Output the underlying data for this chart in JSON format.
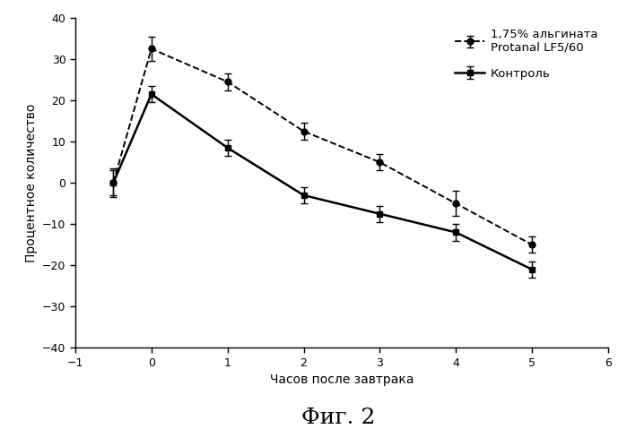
{
  "alginate_x": [
    -0.5,
    0,
    1,
    2,
    3,
    4,
    5
  ],
  "alginate_y": [
    0,
    32.5,
    24.5,
    12.5,
    5,
    -5,
    -15
  ],
  "alginate_yerr": [
    3.5,
    3,
    2,
    2,
    2,
    3,
    2
  ],
  "control_x": [
    -0.5,
    0,
    1,
    2,
    3,
    4,
    5
  ],
  "control_y": [
    0,
    21.5,
    8.5,
    -3,
    -7.5,
    -12,
    -21
  ],
  "control_yerr": [
    3,
    2,
    2,
    2,
    2,
    2,
    2
  ],
  "xlim": [
    -1,
    6
  ],
  "ylim": [
    -40,
    40
  ],
  "xticks": [
    -1,
    0,
    1,
    2,
    3,
    4,
    5,
    6
  ],
  "yticks": [
    -40,
    -30,
    -20,
    -10,
    0,
    10,
    20,
    30,
    40
  ],
  "xlabel": "Часов после завтрака",
  "ylabel": "Процентное количество",
  "legend1": "1,75% альгината\nProtanal LF5/60",
  "legend2": "Контроль",
  "figure_title": "Фиг. 2",
  "line_color": "#000000",
  "background_color": "#ffffff"
}
